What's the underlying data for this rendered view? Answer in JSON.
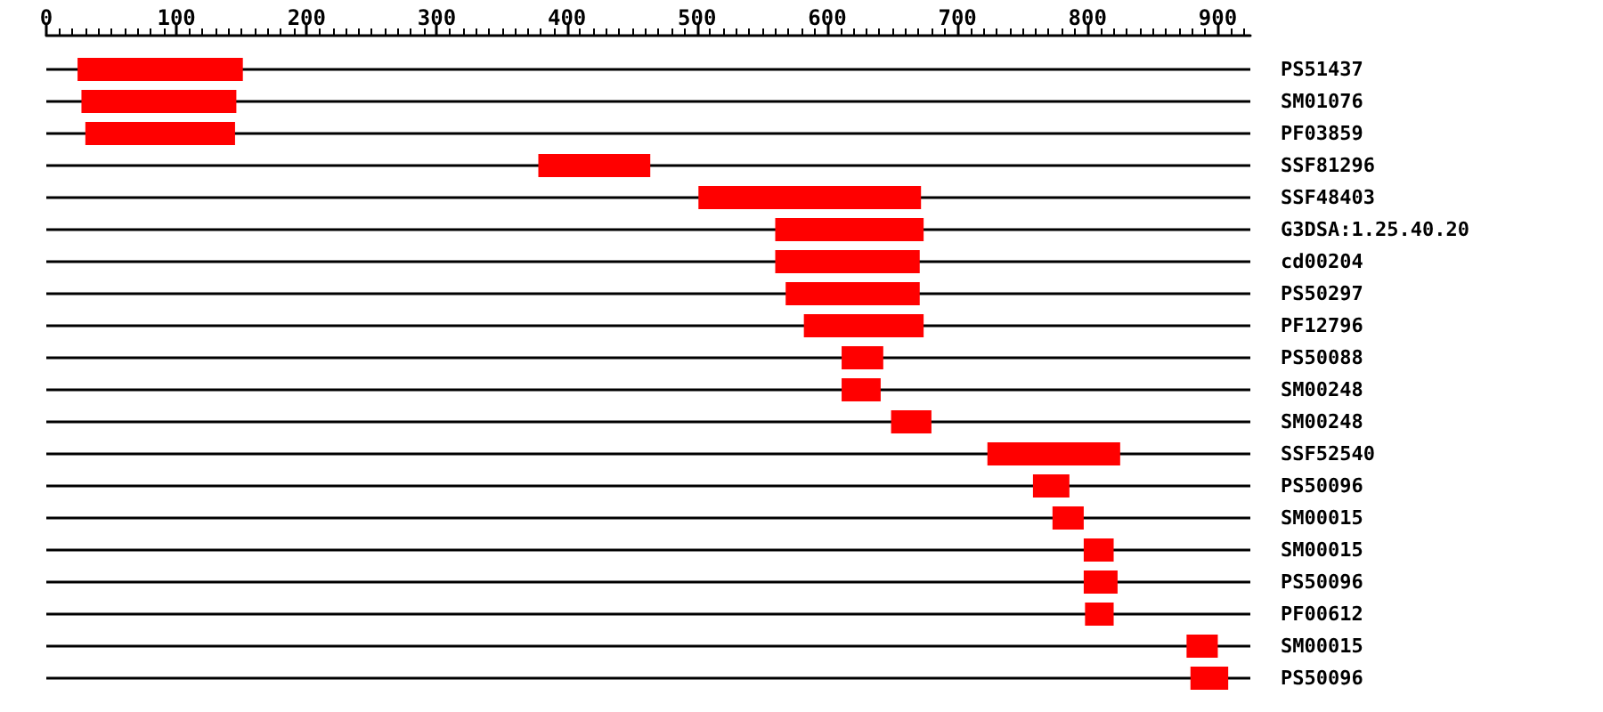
{
  "chart_data": {
    "type": "bar",
    "orientation": "horizontal",
    "grid": "y",
    "categories": [
      "PS51437",
      "SM01076",
      "PF03859",
      "SSF81296",
      "SSF48403",
      "G3DSA:1.25.40.20",
      "cd00204",
      "PS50297",
      "PF12796",
      "PS50088",
      "SM00248",
      "SM00248",
      "SSF52540",
      "PS50096",
      "SM00015",
      "SM00015",
      "PS50096",
      "PF00612",
      "SM00015",
      "PS50096"
    ],
    "base": [
      24,
      27,
      30,
      378,
      501,
      560,
      560,
      568,
      582,
      611,
      611,
      649,
      723,
      758,
      773,
      797,
      797,
      798,
      876,
      879
    ],
    "values": [
      127,
      119,
      115,
      86,
      171,
      114,
      111,
      103,
      92,
      32,
      30,
      31,
      102,
      28,
      24,
      23,
      26,
      22,
      24,
      29
    ],
    "color": "#ff0000",
    "xlim": [
      0,
      925
    ],
    "xticks": [
      0,
      100,
      200,
      300,
      400,
      500,
      600,
      700,
      800,
      900
    ]
  }
}
